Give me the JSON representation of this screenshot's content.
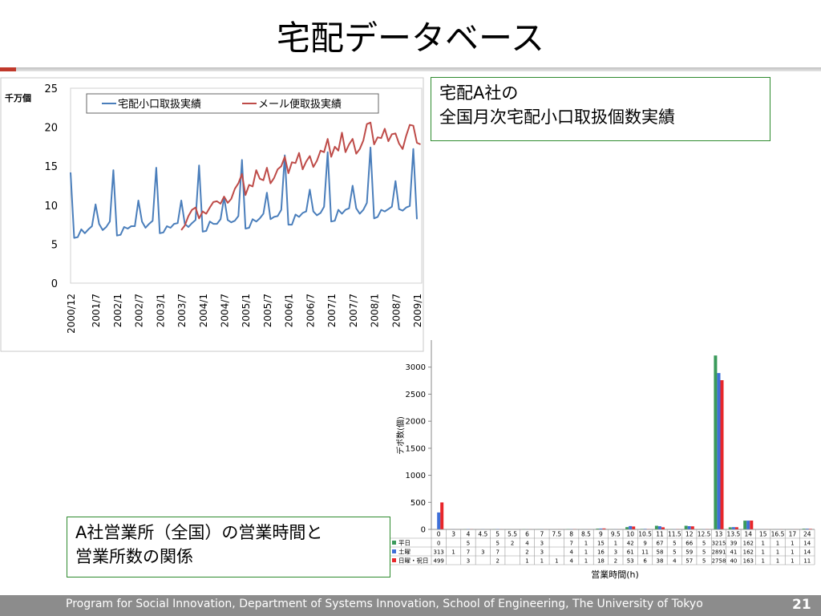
{
  "slide": {
    "title": "宅配データベース",
    "callout_top": [
      "宅配A社の",
      "全国月次宅配小口取扱個数実績"
    ],
    "callout_bottom": [
      "A社営業所（全国）の営業時間と",
      "営業所数の関係"
    ],
    "footer": "Program for Social Innovation, Department of Systems Innovation, School of Engineering, The University of Tokyo",
    "page_number": "21",
    "colors": {
      "accent_red": "#c0392b",
      "callout_border": "#2e8b2e",
      "footer_bg": "#8c8c8c"
    }
  },
  "chart_data": [
    {
      "type": "line",
      "unit_label": "千万個",
      "ylim": [
        0,
        25
      ],
      "yticks": [
        0,
        5,
        10,
        15,
        20,
        25
      ],
      "xtick_labels": [
        "2000/12",
        "2001/7",
        "2002/1",
        "2002/7",
        "2003/1",
        "2003/7",
        "2004/1",
        "2004/7",
        "2005/1",
        "2005/7",
        "2006/1",
        "2006/7",
        "2007/1",
        "2007/7",
        "2008/1",
        "2008/7",
        "2009/1"
      ],
      "x_start_month": "2000/12",
      "grid": false,
      "legend": "top",
      "series": [
        {
          "name": "宅配小口取扱実績",
          "color": "#4a7ebb",
          "start": "2000/12",
          "values": [
            14.2,
            5.8,
            5.9,
            6.9,
            6.4,
            6.9,
            7.3,
            10.1,
            7.6,
            6.8,
            7.2,
            7.9,
            14.5,
            6.1,
            6.2,
            7.2,
            7.0,
            7.3,
            7.3,
            10.6,
            7.9,
            7.1,
            7.6,
            8.0,
            14.8,
            6.4,
            6.5,
            7.3,
            7.1,
            7.6,
            7.7,
            10.6,
            7.6,
            7.2,
            7.7,
            8.1,
            15.1,
            6.6,
            6.7,
            7.9,
            7.6,
            7.6,
            8.2,
            11.0,
            8.1,
            7.8,
            8.0,
            8.6,
            15.8,
            7.0,
            7.1,
            8.2,
            7.9,
            8.3,
            8.9,
            11.6,
            8.2,
            8.5,
            8.6,
            9.4,
            16.4,
            7.5,
            7.5,
            8.8,
            8.5,
            9.0,
            9.2,
            12.0,
            9.2,
            8.7,
            9.0,
            9.8,
            16.8,
            7.9,
            8.0,
            9.4,
            8.9,
            9.4,
            9.6,
            12.5,
            9.6,
            8.9,
            9.4,
            10.3,
            17.4,
            8.3,
            8.5,
            9.4,
            9.2,
            9.5,
            9.8,
            13.1,
            9.5,
            9.3,
            9.7,
            9.9,
            17.2,
            8.2
          ]
        },
        {
          "name": "メール便取扱実績",
          "color": "#be4b48",
          "start": "2003/7",
          "values": [
            6.8,
            7.4,
            8.6,
            9.4,
            9.7,
            8.3,
            9.2,
            8.9,
            9.7,
            10.4,
            10.5,
            10.2,
            11.1,
            10.3,
            10.8,
            12.1,
            12.8,
            14.0,
            11.3,
            12.6,
            12.4,
            14.5,
            13.4,
            13.2,
            14.8,
            12.8,
            13.5,
            14.6,
            15.0,
            16.2,
            14.1,
            15.5,
            15.4,
            16.7,
            14.6,
            15.6,
            16.3,
            14.9,
            15.7,
            17.0,
            16.8,
            18.5,
            16.2,
            17.5,
            17.0,
            19.3,
            16.8,
            17.8,
            18.5,
            16.6,
            17.2,
            18.3,
            20.4,
            20.6,
            17.8,
            18.7,
            18.6,
            19.8,
            18.2,
            19.1,
            19.2,
            17.9,
            17.2,
            18.9,
            20.3,
            20.2,
            18.0,
            17.8
          ]
        }
      ]
    },
    {
      "type": "bar",
      "ylabel": "デポ数(個)",
      "xlabel": "営業時間(h)",
      "ylim": [
        0,
        3500
      ],
      "yticks": [
        0,
        500,
        1000,
        1500,
        2000,
        2500,
        3000
      ],
      "grid": false,
      "legend": "table-rows",
      "categories": [
        "0",
        "3",
        "4",
        "4.5",
        "5",
        "5.5",
        "6",
        "7",
        "7.5",
        "8",
        "8.5",
        "9",
        "9.5",
        "10",
        "10.5",
        "11",
        "11.5",
        "12",
        "12.5",
        "13",
        "13.5",
        "14",
        "15",
        "16.5",
        "17",
        "24"
      ],
      "series": [
        {
          "name": "平日",
          "color": "#3a9a5b",
          "values": [
            0,
            null,
            5,
            null,
            5,
            2,
            4,
            3,
            null,
            7,
            1,
            15,
            1,
            42,
            9,
            67,
            5,
            66,
            5,
            3215,
            39,
            162,
            1,
            1,
            1,
            14
          ]
        },
        {
          "name": "土曜",
          "color": "#3e6fd8",
          "values": [
            313,
            1,
            7,
            3,
            7,
            null,
            2,
            3,
            null,
            4,
            1,
            16,
            3,
            61,
            11,
            58,
            5,
            59,
            5,
            2891,
            41,
            162,
            1,
            1,
            1,
            14
          ]
        },
        {
          "name": "日曜・祝日",
          "color": "#e8262a",
          "values": [
            499,
            null,
            3,
            null,
            2,
            null,
            1,
            1,
            1,
            4,
            1,
            18,
            2,
            53,
            6,
            38,
            4,
            57,
            5,
            2758,
            40,
            163,
            1,
            1,
            1,
            11
          ]
        }
      ]
    }
  ]
}
